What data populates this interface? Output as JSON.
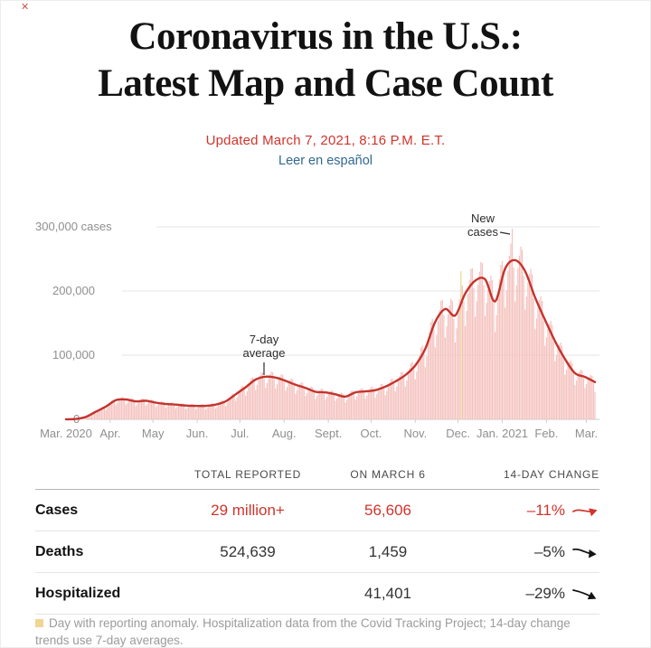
{
  "icons": {
    "close": "✕"
  },
  "page": {
    "title_line1": "Coronavirus in the U.S.:",
    "title_line2": "Latest Map and Case Count",
    "updated": "Updated March 7, 2021, 8:16 P.M. E.T.",
    "language_link": "Leer en español"
  },
  "colors": {
    "accent_red": "#d0342c",
    "line_red": "#c4332c",
    "bar_pink": "#f4c2be",
    "anomaly_yellow": "#f0d593",
    "link_blue": "#326891",
    "grid_gray": "#e4e4e4",
    "label_gray": "#8f8f8f",
    "text_dark": "#121212"
  },
  "chart_data": {
    "type": "bar+line",
    "description": "Daily new reported coronavirus cases in the U.S. (bars) with 7-day average (line), Mar. 2020 - Mar. 2021",
    "x_axis": {
      "start": "2020-03-01",
      "end": "2021-03-07",
      "ticks": [
        {
          "day_index": 0,
          "label": "Mar. 2020"
        },
        {
          "day_index": 31,
          "label": "Apr."
        },
        {
          "day_index": 61,
          "label": "May"
        },
        {
          "day_index": 92,
          "label": "Jun."
        },
        {
          "day_index": 122,
          "label": "Jul."
        },
        {
          "day_index": 153,
          "label": "Aug."
        },
        {
          "day_index": 184,
          "label": "Sept."
        },
        {
          "day_index": 214,
          "label": "Oct."
        },
        {
          "day_index": 245,
          "label": "Nov."
        },
        {
          "day_index": 275,
          "label": "Dec."
        },
        {
          "day_index": 306,
          "label": "Jan. 2021"
        },
        {
          "day_index": 337,
          "label": "Feb."
        },
        {
          "day_index": 365,
          "label": "Mar."
        }
      ]
    },
    "y_axis": {
      "ylim": [
        0,
        310000
      ],
      "gridlines": true,
      "ticks": [
        {
          "value": 300000,
          "label": "300,000 cases"
        },
        {
          "value": 200000,
          "label": "200,000"
        },
        {
          "value": 100000,
          "label": "100,000"
        },
        {
          "value": 0,
          "label": "0"
        }
      ]
    },
    "series": [
      {
        "name": "7-day average",
        "kind": "line",
        "interval_days": 7,
        "values_thousands": [
          0.1,
          0.6,
          4,
          12,
          20,
          30,
          31,
          28,
          29,
          26,
          24,
          23,
          21.5,
          21,
          21,
          23,
          28,
          39,
          50,
          62,
          66.5,
          65,
          60,
          54,
          49,
          43,
          42,
          39,
          35.5,
          42,
          43.5,
          45.5,
          51,
          59,
          69,
          84,
          110,
          152,
          172,
          162,
          196,
          216,
          218,
          184,
          235,
          248,
          231,
          190,
          155,
          122,
          94,
          72,
          66,
          58
        ]
      },
      {
        "name": "New cases",
        "kind": "bar",
        "derived_from": "7-day average interpolated daily, scaled by day-of-week reporting factors",
        "dow_factors": [
          0.74,
          0.85,
          0.97,
          1.06,
          1.13,
          1.12,
          0.96
        ],
        "spikes_thousands": {
          "277": 231,
          "313": 297
        },
        "anomaly_days": [
          277
        ]
      }
    ],
    "annotations": [
      {
        "lines": [
          "New",
          "cases"
        ],
        "points_to": "record single-day bar of roughly 300,000 cases in early January"
      },
      {
        "lines": [
          "7-day",
          "average"
        ],
        "points_to": "average line during the mid-July peak"
      }
    ]
  },
  "table": {
    "headers": [
      "",
      "TOTAL REPORTED",
      "ON MARCH 6",
      "14-DAY CHANGE"
    ],
    "rows": [
      {
        "label": "Cases",
        "total": "29 million+",
        "on_march6": "56,606",
        "change": "–11%",
        "trend": "flat",
        "red": true
      },
      {
        "label": "Deaths",
        "total": "524,639",
        "on_march6": "1,459",
        "change": "–5%",
        "trend": "slight-down",
        "red": false
      },
      {
        "label": "Hospitalized",
        "total": "",
        "on_march6": "41,401",
        "change": "–29%",
        "trend": "down",
        "red": false
      }
    ]
  },
  "footnote": {
    "legend_square": "anomaly",
    "text": "Day with reporting anomaly. Hospitalization data from the Covid Tracking Project; 14-day change trends use 7-day averages."
  }
}
